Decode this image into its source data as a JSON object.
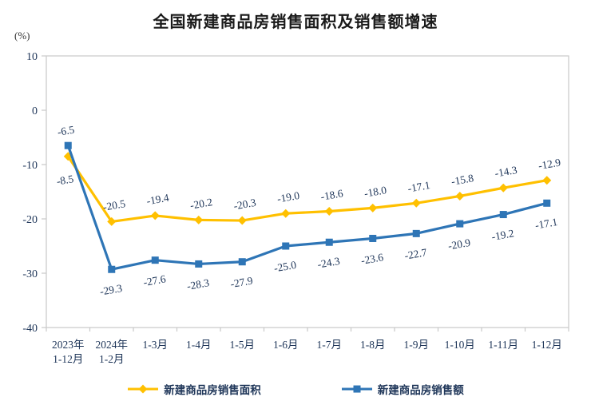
{
  "chart_data": {
    "type": "line",
    "title": "全国新建商品房销售面积及销售额增速",
    "unit_label": "(%)",
    "ylabel": "%",
    "ylim": [
      -40,
      10
    ],
    "yticks": [
      10,
      0,
      -10,
      -20,
      -30,
      -40
    ],
    "grid": false,
    "legend_position": "bottom",
    "categories": [
      [
        "2023年",
        "1-12月"
      ],
      [
        "2024年",
        "1-2月"
      ],
      [
        "1-3月"
      ],
      [
        "1-4月"
      ],
      [
        "1-5月"
      ],
      [
        "1-6月"
      ],
      [
        "1-7月"
      ],
      [
        "1-8月"
      ],
      [
        "1-9月"
      ],
      [
        "1-10月"
      ],
      [
        "1-11月"
      ],
      [
        "1-12月"
      ]
    ],
    "series": [
      {
        "name": "新建商品房销售面积",
        "color": "#FFC000",
        "marker": "diamond",
        "values": [
          -8.5,
          -20.5,
          -19.4,
          -20.2,
          -20.3,
          -19.0,
          -18.6,
          -18.0,
          -17.1,
          -15.8,
          -14.3,
          -12.9
        ]
      },
      {
        "name": "新建商品房销售额",
        "color": "#2E75B6",
        "marker": "square",
        "values": [
          -6.5,
          -29.3,
          -27.6,
          -28.3,
          -27.9,
          -25.0,
          -24.3,
          -23.6,
          -22.7,
          -20.9,
          -19.2,
          -17.1
        ]
      }
    ],
    "colors": {
      "label_text": "#20375A",
      "plot_border": "#C9C9C9"
    }
  }
}
